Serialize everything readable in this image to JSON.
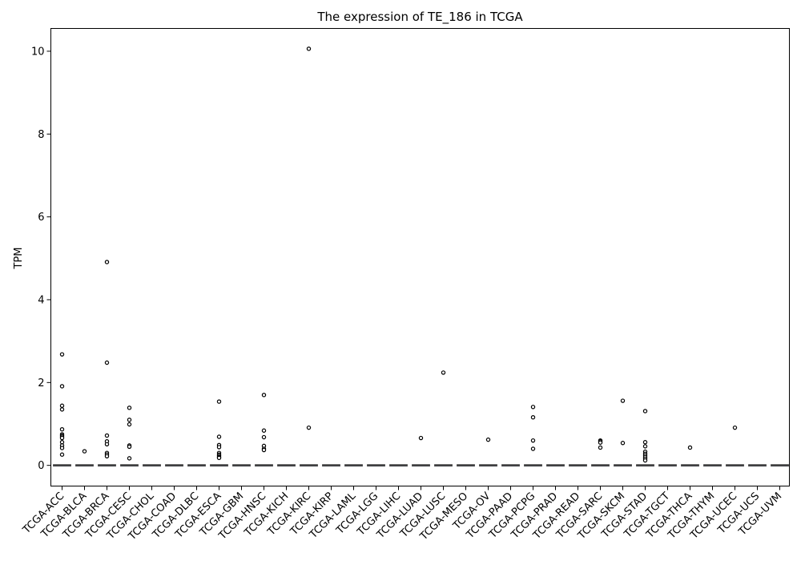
{
  "chart_data": {
    "type": "box",
    "title": "The expression of TE_186 in TCGA",
    "xlabel": "",
    "ylabel": "TPM",
    "ylim": [
      -0.5,
      10.55
    ],
    "yticks": [
      0,
      2,
      4,
      6,
      8,
      10
    ],
    "grid": false,
    "legend": "none",
    "box_color": "#4c72b0",
    "categories": [
      "TCGA-ACC",
      "TCGA-BLCA",
      "TCGA-BRCA",
      "TCGA-CESC",
      "TCGA-CHOL",
      "TCGA-COAD",
      "TCGA-DLBC",
      "TCGA-ESCA",
      "TCGA-GBM",
      "TCGA-HNSC",
      "TCGA-KICH",
      "TCGA-KIRC",
      "TCGA-KIRP",
      "TCGA-LAML",
      "TCGA-LGG",
      "TCGA-LIHC",
      "TCGA-LUAD",
      "TCGA-LUSC",
      "TCGA-MESO",
      "TCGA-OV",
      "TCGA-PAAD",
      "TCGA-PCPG",
      "TCGA-PRAD",
      "TCGA-READ",
      "TCGA-SARC",
      "TCGA-SKCM",
      "TCGA-STAD",
      "TCGA-TGCT",
      "TCGA-THCA",
      "TCGA-THYM",
      "TCGA-UCEC",
      "TCGA-UCS",
      "TCGA-UVM"
    ],
    "medians": [
      0,
      0,
      0,
      0,
      0,
      0,
      0,
      0,
      0,
      0,
      0,
      0,
      0,
      0,
      0,
      0,
      0,
      0,
      0,
      0,
      0,
      0,
      0,
      0,
      0,
      0,
      0,
      0,
      0,
      0,
      0,
      0,
      0
    ],
    "outliers": [
      [
        2.68,
        1.91,
        1.44,
        1.35,
        0.87,
        0.75,
        0.72,
        0.69,
        0.66,
        0.56,
        0.48,
        0.42,
        0.26
      ],
      [
        0.34
      ],
      [
        4.91,
        2.48,
        0.72,
        0.58,
        0.51,
        0.3,
        0.26,
        0.22
      ],
      [
        1.39,
        1.1,
        0.99,
        0.48,
        0.45,
        0.17
      ],
      [],
      [],
      [],
      [
        1.54,
        0.69,
        0.49,
        0.44,
        0.3,
        0.26,
        0.23,
        0.2,
        0.18
      ],
      [],
      [
        1.7,
        0.84,
        0.68,
        0.47,
        0.4,
        0.37
      ],
      [],
      [
        10.06,
        0.91
      ],
      [],
      [],
      [],
      [],
      [
        0.66
      ],
      [
        2.24
      ],
      [],
      [
        0.62
      ],
      [],
      [
        1.41,
        1.16,
        0.6,
        0.4
      ],
      [],
      [],
      [
        0.6,
        0.58,
        0.55,
        0.43
      ],
      [
        1.56,
        0.54
      ],
      [
        1.31,
        0.56,
        0.46,
        0.33,
        0.28,
        0.24,
        0.2,
        0.16,
        0.12
      ],
      [],
      [
        0.43
      ],
      [],
      [
        0.91
      ],
      [],
      []
    ]
  }
}
